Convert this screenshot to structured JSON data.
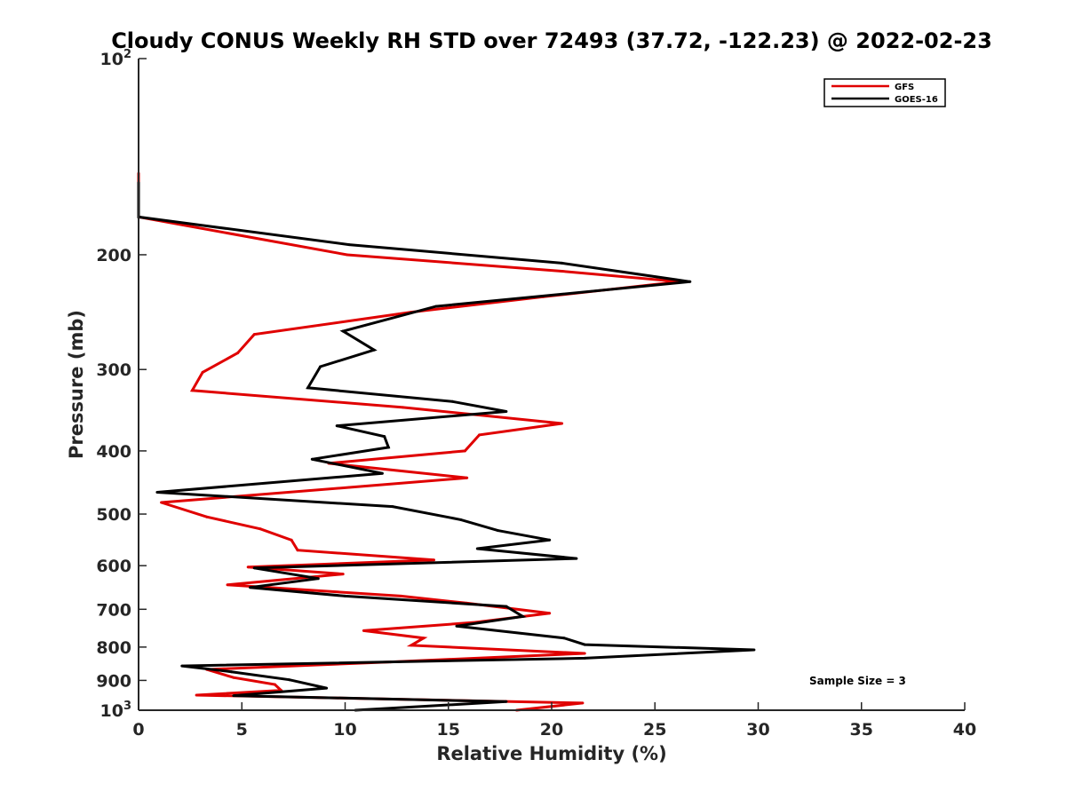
{
  "chart_data": {
    "type": "line",
    "title": "Cloudy CONUS Weekly RH STD over 72493 (37.72, -122.23) @ 2022-02-23",
    "xlabel": "Relative Humidity (%)",
    "ylabel": "Pressure (mb)",
    "xlim": [
      0,
      40
    ],
    "ylim": [
      100,
      1000
    ],
    "y_scale": "log",
    "y_reversed": true,
    "x_ticks": [
      "0",
      "5",
      "10",
      "15",
      "20",
      "25",
      "30",
      "35",
      "40"
    ],
    "y_ticks": [
      {
        "value": 100,
        "label": "10",
        "sup": "2"
      },
      {
        "value": 200,
        "label": "200"
      },
      {
        "value": 300,
        "label": "300"
      },
      {
        "value": 400,
        "label": "400"
      },
      {
        "value": 500,
        "label": "500"
      },
      {
        "value": 600,
        "label": "600"
      },
      {
        "value": 700,
        "label": "700"
      },
      {
        "value": 800,
        "label": "800"
      },
      {
        "value": 900,
        "label": "900"
      },
      {
        "value": 1000,
        "label": "10",
        "sup": "3"
      }
    ],
    "legend_position": "top-right",
    "annotation": "Sample Size = 3",
    "series": [
      {
        "name": "GFS",
        "color": "#e00000",
        "points": [
          [
            0,
            150
          ],
          [
            0,
            175
          ],
          [
            10.1,
            200
          ],
          [
            20.5,
            212
          ],
          [
            26.2,
            220
          ],
          [
            19.6,
            232
          ],
          [
            13.2,
            245
          ],
          [
            5.6,
            265
          ],
          [
            4.8,
            283
          ],
          [
            3.1,
            303
          ],
          [
            2.6,
            323
          ],
          [
            12.8,
            343
          ],
          [
            20.5,
            363
          ],
          [
            16.5,
            378
          ],
          [
            15.8,
            400
          ],
          [
            9.2,
            418
          ],
          [
            15.9,
            440
          ],
          [
            10.2,
            455
          ],
          [
            1.1,
            480
          ],
          [
            3.3,
            505
          ],
          [
            5.9,
            527
          ],
          [
            7.4,
            548
          ],
          [
            7.7,
            568
          ],
          [
            14.3,
            588
          ],
          [
            5.3,
            603
          ],
          [
            9.9,
            618
          ],
          [
            4.3,
            642
          ],
          [
            12.7,
            668
          ],
          [
            15.9,
            685
          ],
          [
            19.9,
            710
          ],
          [
            16.3,
            733
          ],
          [
            10.9,
            755
          ],
          [
            13.8,
            775
          ],
          [
            13.2,
            795
          ],
          [
            21.6,
            818
          ],
          [
            12.2,
            843
          ],
          [
            3.3,
            866
          ],
          [
            4.6,
            891
          ],
          [
            6.6,
            913
          ],
          [
            6.9,
            932
          ],
          [
            2.8,
            948
          ],
          [
            21.5,
            975
          ],
          [
            18.3,
            1000
          ]
        ]
      },
      {
        "name": "GOES-16",
        "color": "#000000",
        "points": [
          [
            0,
            155
          ],
          [
            0,
            175
          ],
          [
            10.2,
            193
          ],
          [
            20.5,
            206
          ],
          [
            26.7,
            220
          ],
          [
            14.4,
            240
          ],
          [
            9.9,
            262
          ],
          [
            11.4,
            280
          ],
          [
            8.8,
            297
          ],
          [
            8.2,
            320
          ],
          [
            15.2,
            336
          ],
          [
            17.8,
            348
          ],
          [
            9.6,
            366
          ],
          [
            11.9,
            380
          ],
          [
            12.1,
            395
          ],
          [
            8.4,
            412
          ],
          [
            11.8,
            433
          ],
          [
            0.9,
            463
          ],
          [
            12.3,
            487
          ],
          [
            15.6,
            510
          ],
          [
            17.4,
            530
          ],
          [
            19.9,
            548
          ],
          [
            16.4,
            565
          ],
          [
            21.2,
            585
          ],
          [
            5.6,
            605
          ],
          [
            8.7,
            628
          ],
          [
            5.4,
            648
          ],
          [
            10.0,
            668
          ],
          [
            17.8,
            693
          ],
          [
            18.6,
            718
          ],
          [
            15.4,
            743
          ],
          [
            20.6,
            775
          ],
          [
            21.6,
            793
          ],
          [
            29.8,
            808
          ],
          [
            21.6,
            832
          ],
          [
            2.1,
            855
          ],
          [
            4.5,
            873
          ],
          [
            7.3,
            898
          ],
          [
            9.1,
            925
          ],
          [
            4.6,
            950
          ],
          [
            17.8,
            970
          ],
          [
            10.5,
            1000
          ]
        ]
      }
    ]
  }
}
